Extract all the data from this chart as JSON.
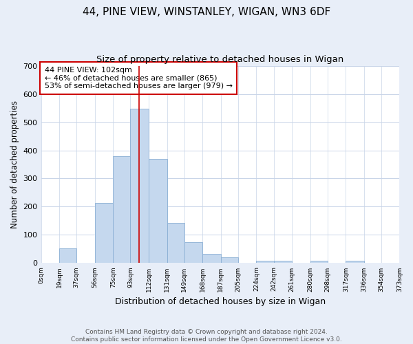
{
  "title": "44, PINE VIEW, WINSTANLEY, WIGAN, WN3 6DF",
  "subtitle": "Size of property relative to detached houses in Wigan",
  "xlabel": "Distribution of detached houses by size in Wigan",
  "ylabel": "Number of detached properties",
  "footer_line1": "Contains HM Land Registry data © Crown copyright and database right 2024.",
  "footer_line2": "Contains public sector information licensed under the Open Government Licence v3.0.",
  "annotation_line1": "44 PINE VIEW: 102sqm",
  "annotation_line2": "← 46% of detached houses are smaller (865)",
  "annotation_line3": "53% of semi-detached houses are larger (979) →",
  "bar_color": "#c5d8ee",
  "bar_edge_color": "#8aafd4",
  "ref_line_color": "#cc0000",
  "ref_line_x": 102,
  "bin_edges": [
    0,
    19,
    37,
    56,
    75,
    93,
    112,
    131,
    149,
    168,
    187,
    205,
    224,
    242,
    261,
    280,
    298,
    317,
    336,
    354,
    373
  ],
  "bar_heights": [
    2,
    52,
    0,
    213,
    380,
    547,
    370,
    142,
    75,
    32,
    20,
    0,
    8,
    8,
    0,
    8,
    0,
    8,
    0,
    2
  ],
  "ylim": [
    0,
    700
  ],
  "yticks": [
    0,
    100,
    200,
    300,
    400,
    500,
    600,
    700
  ],
  "background_color": "#e8eef8",
  "plot_bg_color": "#ffffff",
  "grid_color": "#c8d4e8",
  "title_fontsize": 11,
  "subtitle_fontsize": 9.5,
  "annotation_box_edge_color": "#cc0000",
  "annotation_box_bg": "#ffffff"
}
